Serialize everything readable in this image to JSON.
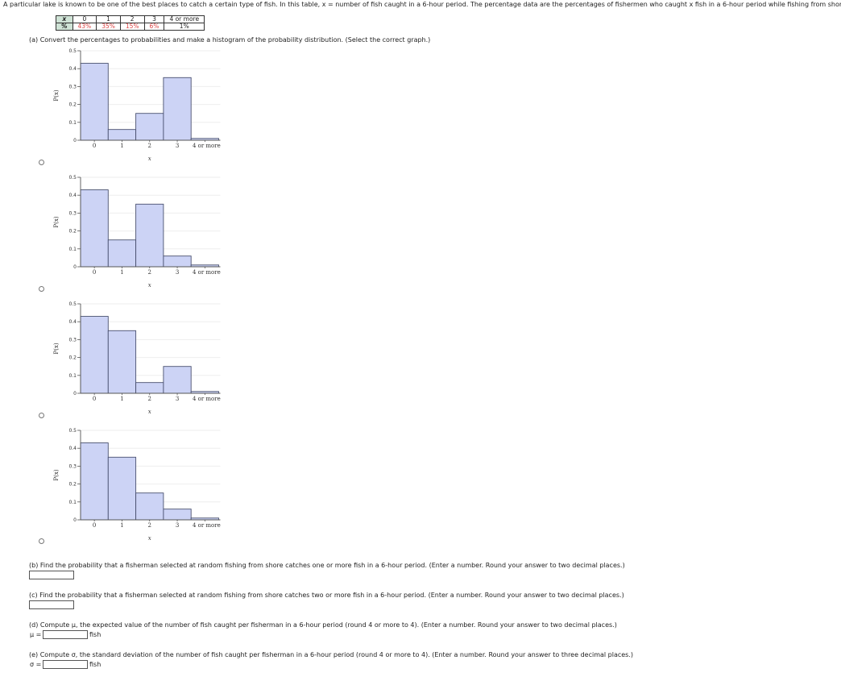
{
  "intro_text": "A particular lake is known to be one of the best places to catch a certain type of fish. In this table, x = number of fish caught in a 6-hour period. The percentage data are the percentages of fishermen who caught x fish in a 6-hour period while fishing from shore.",
  "table": {
    "x_header": "x",
    "pct_header": "%",
    "x_values": [
      "0",
      "1",
      "2",
      "3",
      "4 or more"
    ],
    "percentages": [
      "43%",
      "35%",
      "15%",
      "6%",
      "1%"
    ]
  },
  "questions": {
    "a": "(a) Convert the percentages to probabilities and make a histogram of the probability distribution. (Select the correct graph.)",
    "b": "(b) Find the probability that a fisherman selected at random fishing from shore catches one or more fish in a 6-hour period. (Enter a number. Round your answer to two decimal places.)",
    "c": "(c) Find the probability that a fisherman selected at random fishing from shore catches two or more fish in a 6-hour period. (Enter a number. Round your answer to two decimal places.)",
    "d": "(d) Compute μ, the expected value of the number of fish caught per fisherman in a 6-hour period (round 4 or more to 4). (Enter a number. Round your answer to two decimal places.)",
    "d_label": "μ =",
    "d_unit": "fish",
    "e": "(e) Compute σ, the standard deviation of the number of fish caught per fisherman in a 6-hour period (round 4 or more to 4). (Enter a number. Round your answer to three decimal places.)",
    "e_label": "σ =",
    "e_unit": "fish"
  },
  "graph_colors": {
    "fill": "#ccd3f5",
    "stroke": "#4a5170",
    "axis": "#555555",
    "grid": "#eeeeee"
  },
  "chart_data": [
    {
      "type": "bar",
      "categories": [
        "0",
        "1",
        "2",
        "3",
        "4 or more"
      ],
      "values": [
        0.43,
        0.06,
        0.15,
        0.35,
        0.01
      ],
      "xlabel": "x",
      "ylabel": "P(x)",
      "ylim": [
        0,
        0.5
      ],
      "yticks": [
        "0",
        "0.1",
        "0.2",
        "0.3",
        "0.4",
        "0.5"
      ]
    },
    {
      "type": "bar",
      "categories": [
        "0",
        "1",
        "2",
        "3",
        "4 or more"
      ],
      "values": [
        0.43,
        0.15,
        0.35,
        0.06,
        0.01
      ],
      "xlabel": "x",
      "ylabel": "P(x)",
      "ylim": [
        0,
        0.5
      ],
      "yticks": [
        "0",
        "0.1",
        "0.2",
        "0.3",
        "0.4",
        "0.5"
      ]
    },
    {
      "type": "bar",
      "categories": [
        "0",
        "1",
        "2",
        "3",
        "4 or more"
      ],
      "values": [
        0.43,
        0.35,
        0.06,
        0.15,
        0.01
      ],
      "xlabel": "x",
      "ylabel": "P(x)",
      "ylim": [
        0,
        0.5
      ],
      "yticks": [
        "0",
        "0.1",
        "0.2",
        "0.3",
        "0.4",
        "0.5"
      ]
    },
    {
      "type": "bar",
      "categories": [
        "0",
        "1",
        "2",
        "3",
        "4 or more"
      ],
      "values": [
        0.43,
        0.35,
        0.15,
        0.06,
        0.01
      ],
      "xlabel": "x",
      "ylabel": "P(x)",
      "ylim": [
        0,
        0.5
      ],
      "yticks": [
        "0",
        "0.1",
        "0.2",
        "0.3",
        "0.4",
        "0.5"
      ]
    }
  ]
}
